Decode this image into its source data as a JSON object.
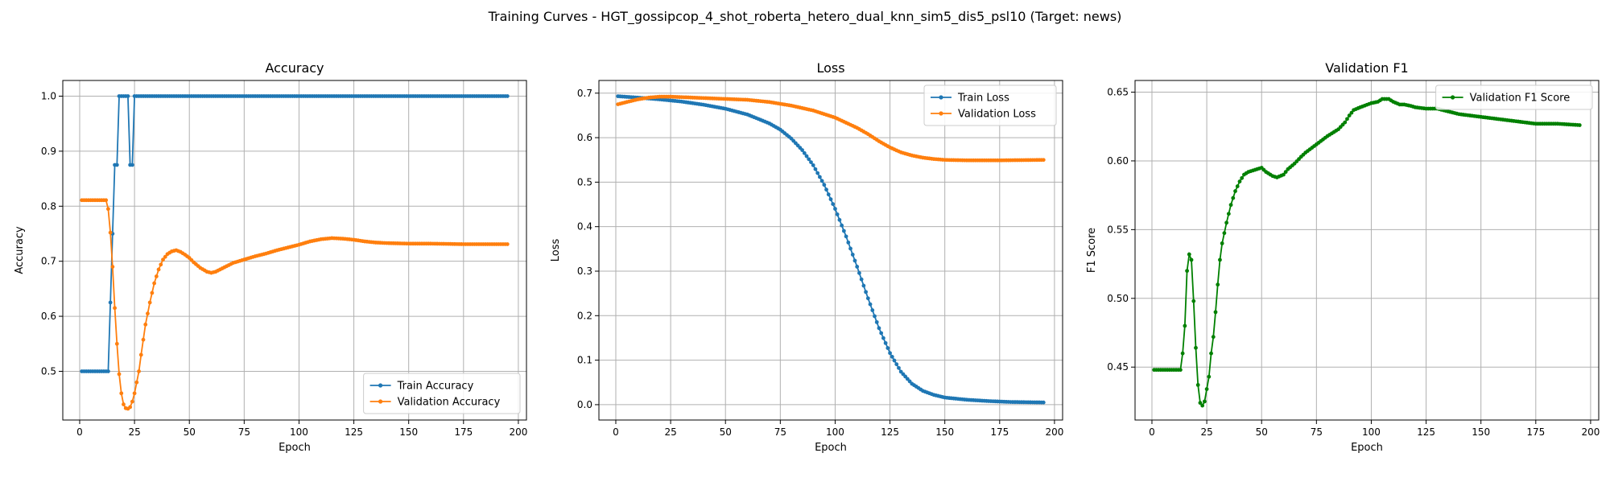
{
  "figure": {
    "suptitle": "Training Curves - HGT_gossipcop_4_shot_roberta_hetero_dual_knn_sim5_dis5_psl10 (Target: news)"
  },
  "chart_data": [
    {
      "type": "line",
      "title": "Accuracy",
      "xlabel": "Epoch",
      "ylabel": "Accuracy",
      "xlim": [
        -7.7,
        203.7
      ],
      "ylim": [
        0.4115,
        1.0285
      ],
      "xticks": [
        0,
        25,
        50,
        75,
        100,
        125,
        150,
        175,
        200
      ],
      "yticks": [
        0.5,
        0.6,
        0.7,
        0.8,
        0.9,
        1.0
      ],
      "ytick_labels": [
        "0.5",
        "0.6",
        "0.7",
        "0.8",
        "0.9",
        "1.0"
      ],
      "grid": true,
      "legend_position": "lower-right",
      "x_start": 1,
      "x_end": 195,
      "series": [
        {
          "name": "Train Accuracy",
          "color": "#1f77b4",
          "points": [
            [
              1,
              0.5
            ],
            [
              13,
              0.5
            ],
            [
              14,
              0.625
            ],
            [
              15,
              0.75
            ],
            [
              16,
              0.875
            ],
            [
              17,
              0.875
            ],
            [
              18,
              1.0
            ],
            [
              22,
              1.0
            ],
            [
              23,
              0.875
            ],
            [
              24,
              0.875
            ],
            [
              25,
              1.0
            ],
            [
              195,
              1.0
            ]
          ]
        },
        {
          "name": "Validation Accuracy",
          "color": "#ff7f0e",
          "points": [
            [
              1,
              0.811
            ],
            [
              12,
              0.811
            ],
            [
              13,
              0.795
            ],
            [
              14,
              0.752
            ],
            [
              15,
              0.69
            ],
            [
              16,
              0.615
            ],
            [
              17,
              0.55
            ],
            [
              18,
              0.495
            ],
            [
              19,
              0.46
            ],
            [
              20,
              0.44
            ],
            [
              21,
              0.433
            ],
            [
              22,
              0.432
            ],
            [
              23,
              0.435
            ],
            [
              24,
              0.445
            ],
            [
              25,
              0.46
            ],
            [
              26,
              0.48
            ],
            [
              27,
              0.5
            ],
            [
              28,
              0.53
            ],
            [
              30,
              0.585
            ],
            [
              32,
              0.625
            ],
            [
              34,
              0.66
            ],
            [
              36,
              0.685
            ],
            [
              38,
              0.703
            ],
            [
              40,
              0.713
            ],
            [
              42,
              0.718
            ],
            [
              44,
              0.72
            ],
            [
              46,
              0.717
            ],
            [
              48,
              0.712
            ],
            [
              50,
              0.706
            ],
            [
              52,
              0.698
            ],
            [
              55,
              0.688
            ],
            [
              58,
              0.681
            ],
            [
              60,
              0.679
            ],
            [
              62,
              0.681
            ],
            [
              65,
              0.687
            ],
            [
              70,
              0.697
            ],
            [
              75,
              0.703
            ],
            [
              80,
              0.709
            ],
            [
              85,
              0.714
            ],
            [
              90,
              0.72
            ],
            [
              95,
              0.725
            ],
            [
              100,
              0.73
            ],
            [
              105,
              0.736
            ],
            [
              110,
              0.74
            ],
            [
              115,
              0.742
            ],
            [
              120,
              0.741
            ],
            [
              125,
              0.739
            ],
            [
              130,
              0.736
            ],
            [
              135,
              0.734
            ],
            [
              140,
              0.733
            ],
            [
              150,
              0.732
            ],
            [
              160,
              0.732
            ],
            [
              175,
              0.731
            ],
            [
              195,
              0.731
            ]
          ]
        }
      ]
    },
    {
      "type": "line",
      "title": "Loss",
      "xlabel": "Epoch",
      "ylabel": "Loss",
      "xlim": [
        -7.7,
        203.7
      ],
      "ylim": [
        -0.0345,
        0.7285
      ],
      "xticks": [
        0,
        25,
        50,
        75,
        100,
        125,
        150,
        175,
        200
      ],
      "yticks": [
        0.0,
        0.1,
        0.2,
        0.3,
        0.4,
        0.5,
        0.6,
        0.7
      ],
      "ytick_labels": [
        "0.0",
        "0.1",
        "0.2",
        "0.3",
        "0.4",
        "0.5",
        "0.6",
        "0.7"
      ],
      "grid": true,
      "legend_position": "upper-right",
      "x_start": 1,
      "x_end": 195,
      "series": [
        {
          "name": "Train Loss",
          "color": "#1f77b4",
          "points": [
            [
              1,
              0.693
            ],
            [
              10,
              0.69
            ],
            [
              20,
              0.686
            ],
            [
              30,
              0.681
            ],
            [
              40,
              0.674
            ],
            [
              50,
              0.665
            ],
            [
              60,
              0.652
            ],
            [
              70,
              0.632
            ],
            [
              75,
              0.618
            ],
            [
              80,
              0.598
            ],
            [
              85,
              0.572
            ],
            [
              90,
              0.538
            ],
            [
              95,
              0.494
            ],
            [
              100,
              0.44
            ],
            [
              105,
              0.378
            ],
            [
              110,
              0.31
            ],
            [
              115,
              0.239
            ],
            [
              120,
              0.172
            ],
            [
              125,
              0.116
            ],
            [
              130,
              0.074
            ],
            [
              135,
              0.047
            ],
            [
              140,
              0.031
            ],
            [
              145,
              0.022
            ],
            [
              150,
              0.016
            ],
            [
              160,
              0.011
            ],
            [
              170,
              0.008
            ],
            [
              180,
              0.006
            ],
            [
              195,
              0.005
            ]
          ]
        },
        {
          "name": "Validation Loss",
          "color": "#ff7f0e",
          "points": [
            [
              1,
              0.675
            ],
            [
              5,
              0.68
            ],
            [
              10,
              0.686
            ],
            [
              15,
              0.69
            ],
            [
              20,
              0.692
            ],
            [
              25,
              0.692
            ],
            [
              30,
              0.691
            ],
            [
              40,
              0.689
            ],
            [
              50,
              0.687
            ],
            [
              60,
              0.685
            ],
            [
              70,
              0.68
            ],
            [
              80,
              0.672
            ],
            [
              90,
              0.661
            ],
            [
              100,
              0.645
            ],
            [
              110,
              0.622
            ],
            [
              115,
              0.608
            ],
            [
              120,
              0.592
            ],
            [
              125,
              0.578
            ],
            [
              130,
              0.567
            ],
            [
              135,
              0.56
            ],
            [
              140,
              0.555
            ],
            [
              145,
              0.552
            ],
            [
              150,
              0.55
            ],
            [
              160,
              0.549
            ],
            [
              175,
              0.549
            ],
            [
              195,
              0.55
            ]
          ]
        }
      ]
    },
    {
      "type": "line",
      "title": "Validation F1",
      "xlabel": "Epoch",
      "ylabel": "F1 Score",
      "xlim": [
        -7.7,
        203.7
      ],
      "ylim": [
        0.4115,
        0.6585
      ],
      "xticks": [
        0,
        25,
        50,
        75,
        100,
        125,
        150,
        175,
        200
      ],
      "yticks": [
        0.45,
        0.5,
        0.55,
        0.6,
        0.65
      ],
      "ytick_labels": [
        "0.45",
        "0.50",
        "0.55",
        "0.60",
        "0.65"
      ],
      "grid": true,
      "legend_position": "upper-right",
      "x_start": 1,
      "x_end": 195,
      "series": [
        {
          "name": "Validation F1 Score",
          "color": "#008000",
          "points": [
            [
              1,
              0.448
            ],
            [
              13,
              0.448
            ],
            [
              14,
              0.46
            ],
            [
              15,
              0.48
            ],
            [
              16,
              0.52
            ],
            [
              17,
              0.532
            ],
            [
              18,
              0.528
            ],
            [
              19,
              0.498
            ],
            [
              20,
              0.464
            ],
            [
              21,
              0.437
            ],
            [
              22,
              0.424
            ],
            [
              23,
              0.422
            ],
            [
              24,
              0.425
            ],
            [
              25,
              0.434
            ],
            [
              26,
              0.443
            ],
            [
              27,
              0.46
            ],
            [
              28,
              0.472
            ],
            [
              29,
              0.49
            ],
            [
              30,
              0.51
            ],
            [
              31,
              0.528
            ],
            [
              32,
              0.54
            ],
            [
              34,
              0.555
            ],
            [
              36,
              0.568
            ],
            [
              38,
              0.578
            ],
            [
              40,
              0.585
            ],
            [
              42,
              0.59
            ],
            [
              44,
              0.592
            ],
            [
              46,
              0.593
            ],
            [
              48,
              0.594
            ],
            [
              50,
              0.595
            ],
            [
              52,
              0.592
            ],
            [
              55,
              0.589
            ],
            [
              57,
              0.588
            ],
            [
              60,
              0.59
            ],
            [
              62,
              0.594
            ],
            [
              65,
              0.598
            ],
            [
              68,
              0.603
            ],
            [
              70,
              0.606
            ],
            [
              75,
              0.612
            ],
            [
              80,
              0.618
            ],
            [
              85,
              0.623
            ],
            [
              88,
              0.628
            ],
            [
              90,
              0.633
            ],
            [
              92,
              0.637
            ],
            [
              95,
              0.639
            ],
            [
              100,
              0.642
            ],
            [
              103,
              0.643
            ],
            [
              105,
              0.645
            ],
            [
              108,
              0.645
            ],
            [
              110,
              0.643
            ],
            [
              113,
              0.641
            ],
            [
              115,
              0.641
            ],
            [
              118,
              0.64
            ],
            [
              120,
              0.639
            ],
            [
              125,
              0.638
            ],
            [
              130,
              0.638
            ],
            [
              135,
              0.636
            ],
            [
              140,
              0.634
            ],
            [
              145,
              0.633
            ],
            [
              150,
              0.632
            ],
            [
              155,
              0.631
            ],
            [
              160,
              0.63
            ],
            [
              165,
              0.629
            ],
            [
              170,
              0.628
            ],
            [
              175,
              0.627
            ],
            [
              185,
              0.627
            ],
            [
              195,
              0.626
            ]
          ]
        }
      ]
    }
  ]
}
